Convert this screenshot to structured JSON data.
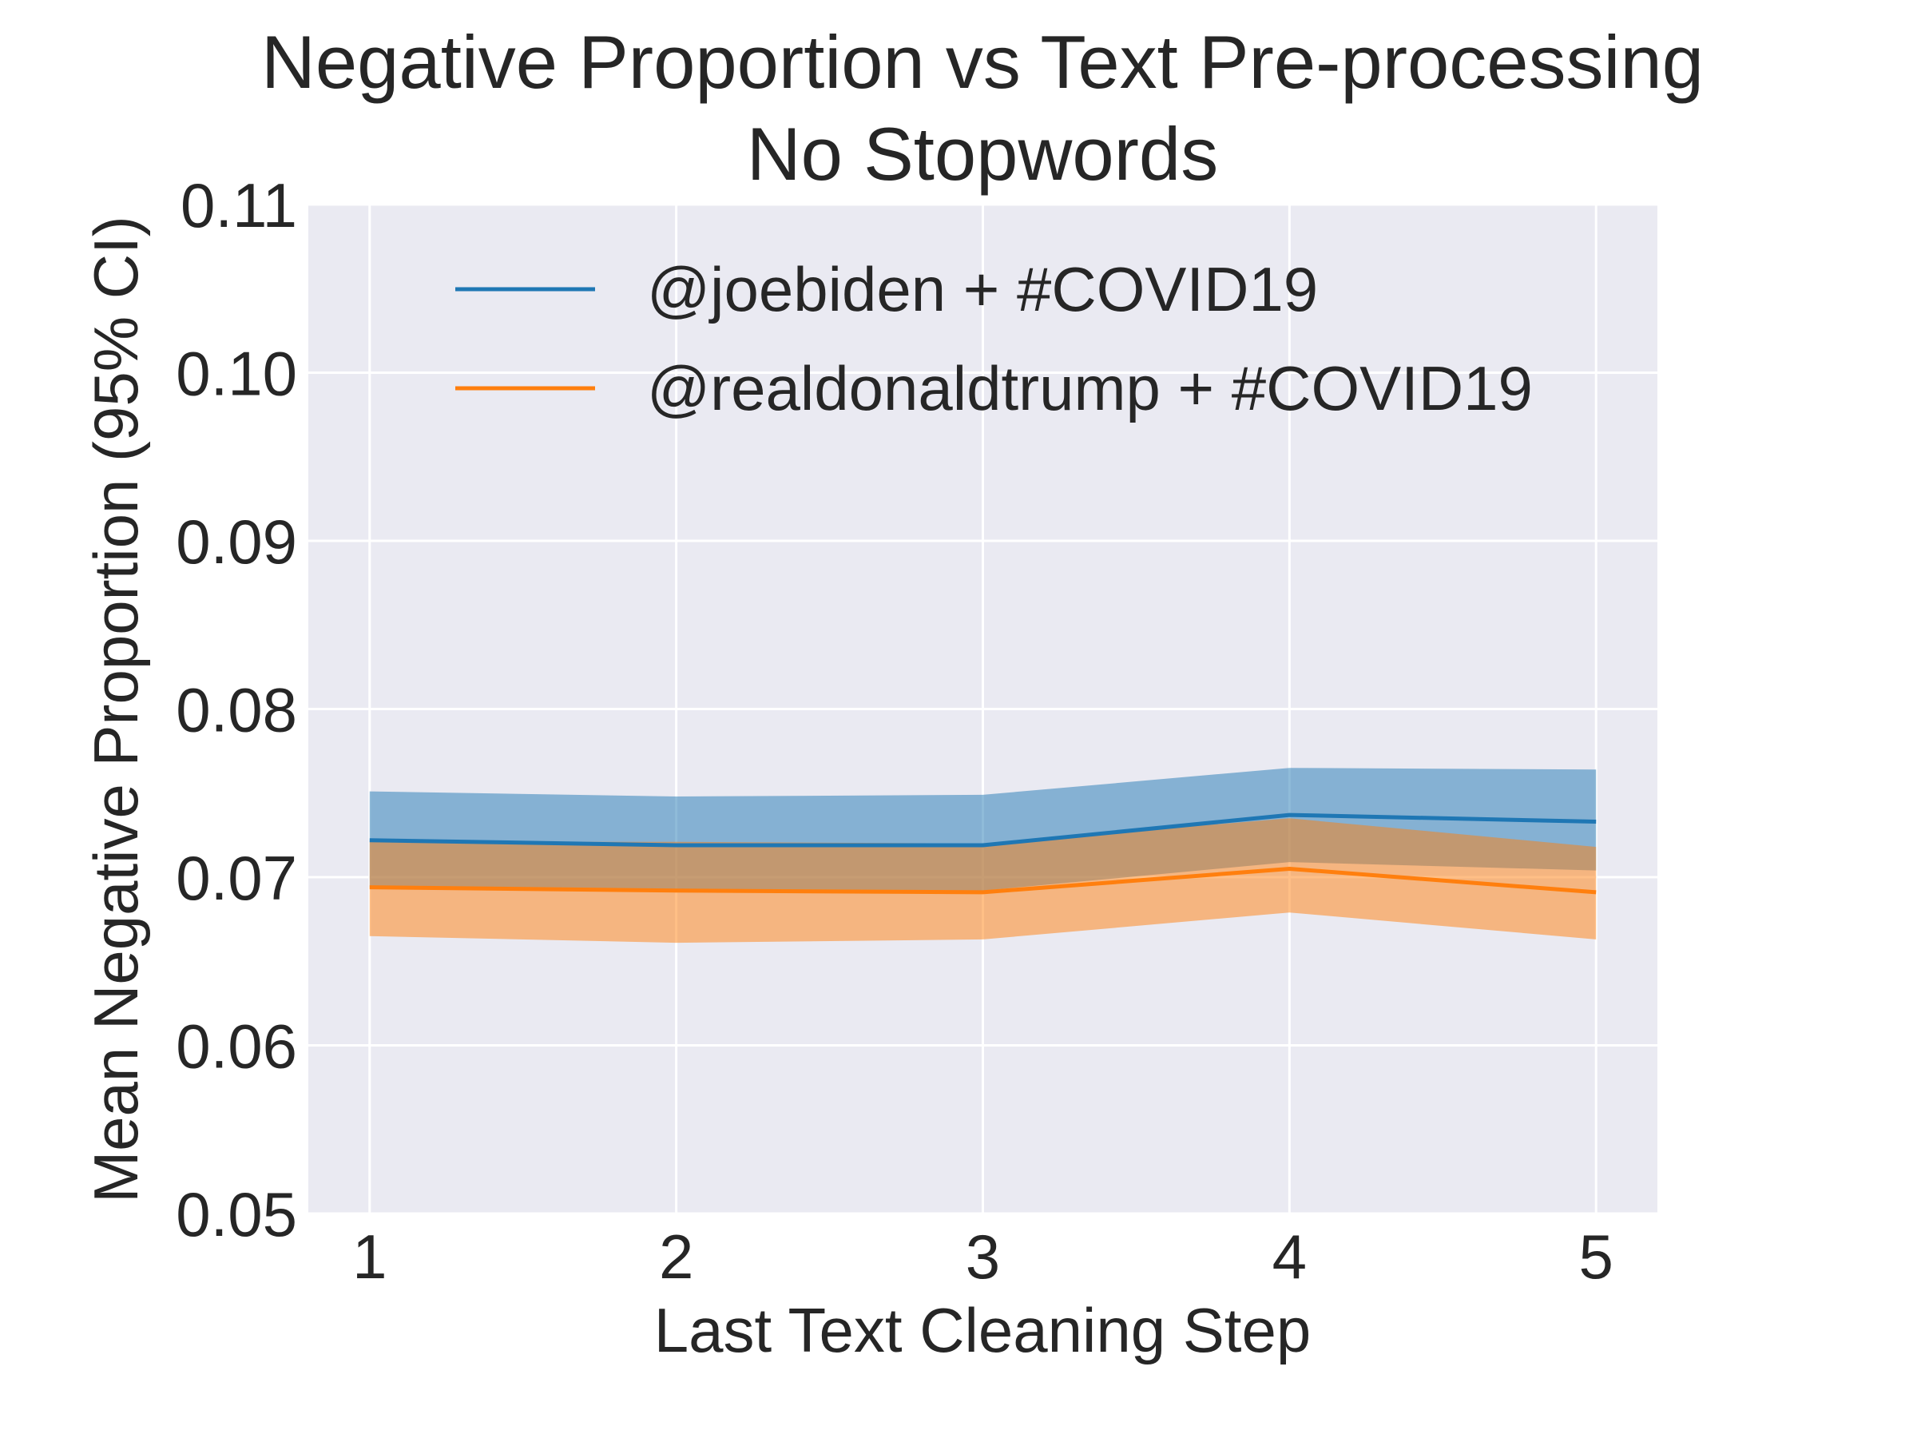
{
  "chart_data": {
    "type": "line",
    "title_lines": [
      "Negative Proportion vs Text Pre-processing",
      "No Stopwords"
    ],
    "xlabel": "Last Text Cleaning Step",
    "ylabel": "Mean Negative Proportion (95% CI)",
    "x": [
      1,
      2,
      3,
      4,
      5
    ],
    "x_tick_labels": [
      "1",
      "2",
      "3",
      "4",
      "5"
    ],
    "xlim": [
      0.8,
      5.2
    ],
    "ylim": [
      0.05,
      0.11
    ],
    "y_ticks": [
      0.05,
      0.06,
      0.07,
      0.08,
      0.09,
      0.1,
      0.11
    ],
    "y_tick_labels": [
      "0.05",
      "0.06",
      "0.07",
      "0.08",
      "0.09",
      "0.10",
      "0.11"
    ],
    "grid": true,
    "legend_position": "top",
    "series": [
      {
        "name": "@joebiden + #COVID19",
        "color": "#1f77b4",
        "values": [
          0.0722,
          0.0719,
          0.0719,
          0.0737,
          0.0733
        ],
        "ci_low": [
          0.0694,
          0.0692,
          0.0692,
          0.0709,
          0.0704
        ],
        "ci_high": [
          0.0751,
          0.0748,
          0.0749,
          0.0765,
          0.0764
        ]
      },
      {
        "name": "@realdonaldtrump + #COVID19",
        "color": "#ff7f0e",
        "values": [
          0.0694,
          0.0692,
          0.0691,
          0.0705,
          0.0691
        ],
        "ci_low": [
          0.0665,
          0.0661,
          0.0663,
          0.0679,
          0.0663
        ],
        "ci_high": [
          0.0721,
          0.0721,
          0.072,
          0.0735,
          0.0718
        ]
      }
    ]
  }
}
